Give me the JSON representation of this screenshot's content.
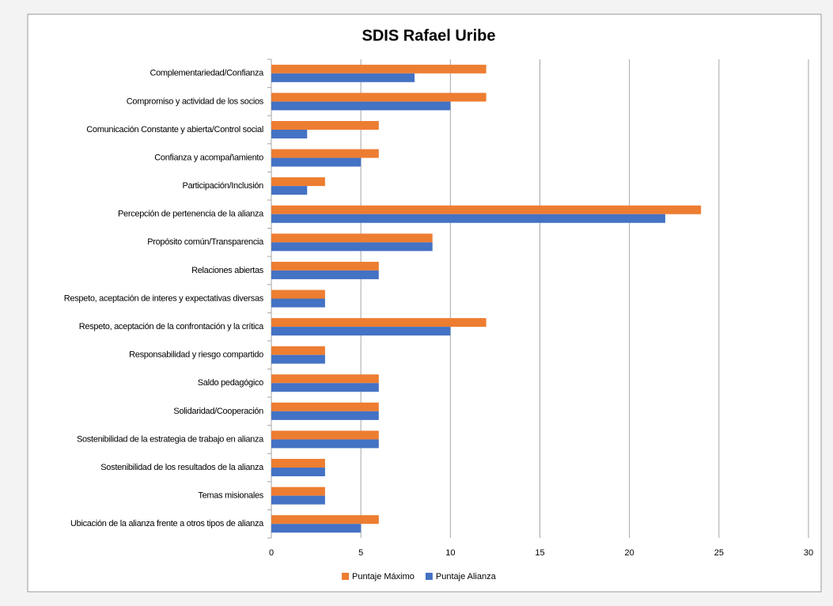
{
  "chart_data": {
    "type": "hbar",
    "title": "SDIS Rafael Uribe",
    "categories": [
      "Complementariedad/Confianza",
      "Compromiso y actividad de los socios",
      "Comunicación Constante y abierta/Control social",
      "Confianza y acompañamiento",
      "Participación/Inclusión",
      "Percepción de pertenencia de la alianza",
      "Propósito común/Transparencia",
      "Relaciones abiertas",
      "Respeto, aceptación de interes y expectativas diversas",
      "Respeto, aceptación de la confrontación y la crítica",
      "Responsabilidad y riesgo compartido",
      "Saldo pedagógico",
      "Solidaridad/Cooperación",
      "Sostenibilidad de la estrategia de trabajo en alianza",
      "Sostenibilidad de los resultados de la alianza",
      "Temas misionales",
      "Ubicación de la alianza frente a otros tipos de alianza"
    ],
    "series": [
      {
        "name": "Puntaje Máximo",
        "color": "#ed7d31",
        "values": [
          12,
          12,
          6,
          6,
          3,
          24,
          9,
          6,
          3,
          12,
          3,
          6,
          6,
          6,
          3,
          3,
          6
        ]
      },
      {
        "name": "Puntaje Alianza",
        "color": "#4472c4",
        "values": [
          8,
          10,
          2,
          5,
          2,
          22,
          9,
          6,
          3,
          10,
          3,
          6,
          6,
          6,
          3,
          3,
          5
        ]
      }
    ],
    "xlim": [
      0,
      30
    ],
    "xticks": [
      0,
      5,
      10,
      15,
      20,
      25,
      30
    ],
    "grid": true,
    "legend": "bottom"
  }
}
